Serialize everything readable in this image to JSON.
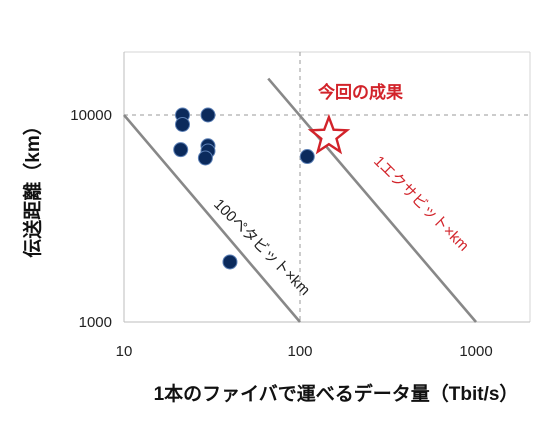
{
  "chart_data": {
    "type": "scatter",
    "x_scale": "log",
    "y_scale": "log",
    "xlim": [
      10,
      1000
    ],
    "ylim": [
      1000,
      10000
    ],
    "x_ticks": [
      "10",
      "100",
      "1000"
    ],
    "y_ticks": [
      "1000",
      "10000"
    ],
    "xlabel": "1本のファイバで運べるデータ量（Tbit/s）",
    "ylabel": "伝送距離（km）",
    "grid": "dashed",
    "points": [
      {
        "x": 21.5,
        "y": 10000
      },
      {
        "x": 21.5,
        "y": 9000
      },
      {
        "x": 21,
        "y": 6800
      },
      {
        "x": 30,
        "y": 10000
      },
      {
        "x": 30,
        "y": 7100
      },
      {
        "x": 30,
        "y": 6700
      },
      {
        "x": 29,
        "y": 6200
      },
      {
        "x": 110,
        "y": 6300
      },
      {
        "x": 40,
        "y": 1950
      }
    ],
    "highlight": {
      "x": 146,
      "y": 7900,
      "label": "今回の成果",
      "color": "#d2232a"
    },
    "reference_lines": [
      {
        "label": "100ペタビット×km",
        "x1": 10,
        "y1": 10000,
        "x2": 100,
        "y2": 1000
      },
      {
        "label": "1エクサビット×km",
        "x1": 66,
        "y1": 15000,
        "x2": 1000,
        "y2": 1000
      }
    ],
    "colors": {
      "points": "#0b2a5c",
      "lines": "#888888",
      "highlight": "#d2232a"
    }
  }
}
